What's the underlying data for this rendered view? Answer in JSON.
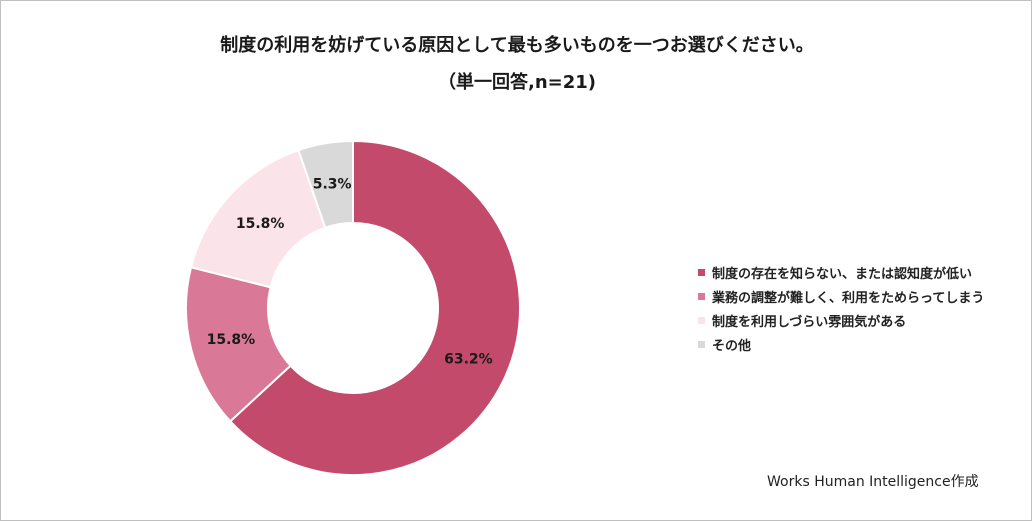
{
  "chart_data": {
    "type": "pie",
    "title": "制度の利用を妨げている原因として最も多いものを一つお選びください。",
    "subtitle": "（単一回答,n=21)",
    "categories": [
      "制度の存在を知らない、または認知度が低い",
      "業務の調整が難しく、利用をためらってしまう",
      "制度を利用しづらい雰囲気がある",
      "その他"
    ],
    "values": [
      63.2,
      15.8,
      15.8,
      5.3
    ],
    "data_labels": [
      "63.2%",
      "15.8%",
      "15.8%",
      "5.3%"
    ],
    "colors": [
      "#c44a6c",
      "#da7898",
      "#fbe3ea",
      "#d9d9d9"
    ],
    "legend_position": "right"
  },
  "source_note": "Works Human Intelligence作成"
}
